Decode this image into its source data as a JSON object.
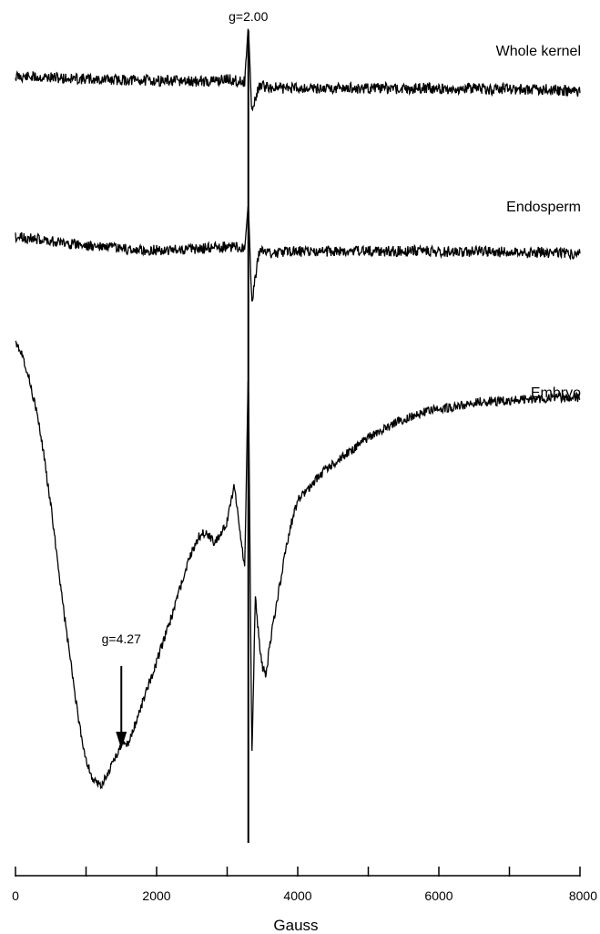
{
  "chart_data": {
    "type": "line",
    "title": "",
    "xlabel": "Gauss",
    "ylabel": "",
    "xlim": [
      0,
      8000
    ],
    "x_ticks": [
      0,
      2000,
      4000,
      6000,
      8000
    ],
    "x_ticks_minor_step": 1000,
    "grid": false,
    "line_color": "#000000",
    "annotations": [
      {
        "text": "g=2.00",
        "x": 3300
      },
      {
        "text": "g=4.27",
        "x": 1500
      }
    ],
    "series": [
      {
        "name": "Whole kernel",
        "x": [
          0,
          250,
          500,
          750,
          1000,
          1250,
          1500,
          1750,
          2000,
          2250,
          2500,
          2750,
          3000,
          3150,
          3250,
          3300,
          3350,
          3450,
          3600,
          3800,
          4000,
          4250,
          4500,
          4750,
          5000,
          5250,
          5500,
          5750,
          6000,
          6250,
          6500,
          6750,
          7000,
          7250,
          7500,
          7750,
          8000
        ],
        "y": [
          0.62,
          0.58,
          0.55,
          0.5,
          0.46,
          0.42,
          0.4,
          0.38,
          0.36,
          0.33,
          0.3,
          0.32,
          0.45,
          0.35,
          0.3,
          3.8,
          -1.6,
          0.05,
          -0.05,
          -0.1,
          -0.05,
          -0.12,
          -0.08,
          -0.1,
          -0.12,
          -0.1,
          -0.14,
          -0.1,
          -0.12,
          -0.15,
          -0.1,
          -0.18,
          -0.12,
          -0.2,
          -0.15,
          -0.25,
          -0.3
        ]
      },
      {
        "name": "Endosperm",
        "x": [
          0,
          250,
          500,
          750,
          1000,
          1250,
          1500,
          1750,
          2000,
          2250,
          2500,
          2750,
          3000,
          3150,
          3250,
          3300,
          3350,
          3450,
          3600,
          3800,
          4000,
          4250,
          4500,
          4750,
          5000,
          5250,
          5500,
          5750,
          6000,
          6250,
          6500,
          6750,
          7000,
          7250,
          7500,
          7750,
          8000
        ],
        "y": [
          0.85,
          0.72,
          0.6,
          0.45,
          0.3,
          0.2,
          0.1,
          0.0,
          0.02,
          0.05,
          0.08,
          0.15,
          0.22,
          0.2,
          0.18,
          2.9,
          -3.3,
          -0.05,
          -0.15,
          -0.1,
          -0.05,
          -0.08,
          -0.02,
          -0.05,
          0.0,
          -0.03,
          -0.05,
          -0.02,
          -0.05,
          -0.08,
          -0.05,
          -0.06,
          -0.1,
          -0.08,
          -0.12,
          -0.15,
          -0.2
        ]
      },
      {
        "name": "Embryo",
        "x": [
          0,
          100,
          200,
          300,
          400,
          500,
          600,
          700,
          800,
          900,
          1000,
          1100,
          1200,
          1300,
          1400,
          1500,
          1600,
          1700,
          1800,
          1900,
          2000,
          2100,
          2200,
          2300,
          2400,
          2500,
          2600,
          2700,
          2800,
          2900,
          3000,
          3100,
          3200,
          3250,
          3300,
          3350,
          3400,
          3450,
          3500,
          3550,
          3600,
          3700,
          3800,
          3900,
          4000,
          4200,
          4400,
          4600,
          4800,
          5000,
          5200,
          5400,
          5600,
          5800,
          6000,
          6200,
          6400,
          6600,
          6800,
          7000,
          7200,
          7400,
          7600,
          7800,
          8000
        ],
        "y": [
          10.4,
          10.1,
          9.6,
          9.0,
          8.2,
          7.2,
          6.1,
          5.0,
          4.0,
          3.0,
          2.3,
          1.9,
          1.8,
          2.0,
          2.3,
          2.6,
          2.6,
          3.0,
          3.4,
          3.8,
          4.2,
          4.6,
          5.0,
          5.45,
          5.9,
          6.3,
          6.6,
          6.7,
          6.5,
          6.6,
          6.9,
          7.6,
          6.5,
          6.0,
          9.9,
          2.3,
          5.5,
          4.6,
          4.1,
          3.9,
          4.5,
          5.3,
          6.1,
          6.8,
          7.3,
          7.6,
          7.9,
          8.1,
          8.3,
          8.5,
          8.65,
          8.8,
          8.9,
          9.0,
          9.05,
          9.1,
          9.15,
          9.2,
          9.2,
          9.22,
          9.25,
          9.25,
          9.27,
          9.27,
          9.28
        ]
      }
    ]
  }
}
